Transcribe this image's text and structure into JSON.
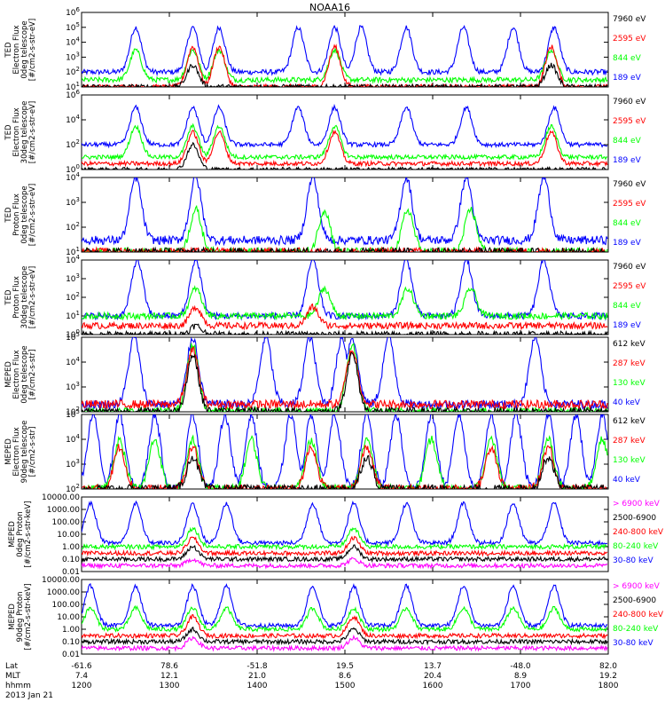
{
  "title": "NOAA16",
  "colors": {
    "blue": "#0000ff",
    "red": "#ff0000",
    "green": "#00ff00",
    "black": "#000000",
    "magenta": "#ff00ff"
  },
  "panels": [
    {
      "ylabel_lines": [
        "TED",
        "Electron Flux",
        "0deg telescope",
        "[#/cm2-s-str-eV]"
      ],
      "yticks": [
        "10^1",
        "10^2",
        "10^3",
        "10^4",
        "10^5",
        "10^6"
      ],
      "legend": [
        {
          "text": "7960 eV",
          "color": "black"
        },
        {
          "text": "2595 eV",
          "color": "red"
        },
        {
          "text": "844 eV",
          "color": "green"
        },
        {
          "text": "189 eV",
          "color": "blue"
        }
      ]
    },
    {
      "ylabel_lines": [
        "TED",
        "Electron Flux",
        "30deg telescope",
        "[#/cm2-s-str-eV]"
      ],
      "yticks": [
        "10^0",
        "10^2",
        "10^4",
        "10^6"
      ],
      "legend": [
        {
          "text": "7960 eV",
          "color": "black"
        },
        {
          "text": "2595 eV",
          "color": "red"
        },
        {
          "text": "844 eV",
          "color": "green"
        },
        {
          "text": "189 eV",
          "color": "blue"
        }
      ]
    },
    {
      "ylabel_lines": [
        "TED",
        "Proton Flux",
        "0deg telescope",
        "[#/cm2-s-str-eV]"
      ],
      "yticks": [
        "10^1",
        "10^2",
        "10^3",
        "10^4"
      ],
      "legend": [
        {
          "text": "7960 eV",
          "color": "black"
        },
        {
          "text": "2595 eV",
          "color": "red"
        },
        {
          "text": "844 eV",
          "color": "green"
        },
        {
          "text": "189 eV",
          "color": "blue"
        }
      ]
    },
    {
      "ylabel_lines": [
        "TED",
        "Proton Flux",
        "30deg telescope",
        "[#/cm2-s-str-eV]"
      ],
      "yticks": [
        "10^0",
        "10^1",
        "10^2",
        "10^3",
        "10^4"
      ],
      "legend": [
        {
          "text": "7960 eV",
          "color": "black"
        },
        {
          "text": "2595 eV",
          "color": "red"
        },
        {
          "text": "844 eV",
          "color": "green"
        },
        {
          "text": "189 eV",
          "color": "blue"
        }
      ]
    },
    {
      "ylabel_lines": [
        "MEPED",
        "Electron Flux",
        "0deg telescope",
        "[#/cm2-s-str]"
      ],
      "yticks": [
        "10^2",
        "10^3",
        "10^4",
        "10^5"
      ],
      "legend": [
        {
          "text": "612 keV",
          "color": "black"
        },
        {
          "text": "287 keV",
          "color": "red"
        },
        {
          "text": "130 keV",
          "color": "green"
        },
        {
          "text": "40 keV",
          "color": "blue"
        }
      ]
    },
    {
      "ylabel_lines": [
        "MEPED",
        "Electron Flux",
        "90deg telescope",
        "[#/cm2-s-str]"
      ],
      "yticks": [
        "10^2",
        "10^3",
        "10^4",
        "10^5"
      ],
      "legend": [
        {
          "text": "612 keV",
          "color": "black"
        },
        {
          "text": "287 keV",
          "color": "red"
        },
        {
          "text": "130 keV",
          "color": "green"
        },
        {
          "text": "40 keV",
          "color": "blue"
        }
      ]
    },
    {
      "ylabel_lines": [
        "MEPED",
        "0deg Proton",
        "[#/cm2-s-str-keV]"
      ],
      "yticks": [
        "0.01",
        "0.10",
        "1.00",
        "10.00",
        "100.00",
        "1000.00",
        "10000.00"
      ],
      "legend": [
        {
          "text": "> 6900 keV",
          "color": "magenta"
        },
        {
          "text": "2500-6900",
          "color": "black"
        },
        {
          "text": "240-800 keV",
          "color": "red"
        },
        {
          "text": "80-240 keV",
          "color": "green"
        },
        {
          "text": "30-80 keV",
          "color": "blue"
        }
      ]
    },
    {
      "ylabel_lines": [
        "MEPED",
        "90deg Proton",
        "[#/cm2-s-str-keV]"
      ],
      "yticks": [
        "0.01",
        "0.10",
        "1.00",
        "10.00",
        "100.00",
        "1000.00",
        "10000.00"
      ],
      "legend": [
        {
          "text": "> 6900 keV",
          "color": "magenta"
        },
        {
          "text": "2500-6900",
          "color": "black"
        },
        {
          "text": "240-800 keV",
          "color": "red"
        },
        {
          "text": "80-240 keV",
          "color": "green"
        },
        {
          "text": "30-80 keV",
          "color": "blue"
        }
      ]
    }
  ],
  "xaxis": {
    "row_labels": [
      "Lat",
      "MLT",
      "hhmm"
    ],
    "date": "2013 Jan 21",
    "columns": [
      {
        "lat": "-61.6",
        "mlt": "7.4",
        "hhmm": "1200"
      },
      {
        "lat": "78.6",
        "mlt": "12.1",
        "hhmm": "1300"
      },
      {
        "lat": "-51.8",
        "mlt": "21.0",
        "hhmm": "1400"
      },
      {
        "lat": "19.5",
        "mlt": "8.6",
        "hhmm": "1500"
      },
      {
        "lat": "13.7",
        "mlt": "20.4",
        "hhmm": "1600"
      },
      {
        "lat": "-48.0",
        "mlt": "8.9",
        "hhmm": "1700"
      },
      {
        "lat": "82.0",
        "mlt": "19.2",
        "hhmm": "1800"
      }
    ]
  },
  "chart_data": {
    "type": "line",
    "title": "NOAA16",
    "x": [
      "1200",
      "1300",
      "1400",
      "1500",
      "1600",
      "1700",
      "1800"
    ],
    "xlim": [
      "1200",
      "1800"
    ],
    "panels": [
      {
        "series": [
          {
            "name": "189 eV",
            "color": "blue",
            "peaks": [
              "1237",
              "1316",
              "1334",
              "1428",
              "1453",
              "1511",
              "1542",
              "1621",
              "1655",
              "1723"
            ],
            "peak_value": 100000,
            "base_value": 100
          },
          {
            "name": "844 eV",
            "color": "green",
            "peaks": [
              "1237",
              "1316",
              "1334",
              "1453",
              "1721"
            ],
            "peak_value": 3000,
            "base_value": 30
          },
          {
            "name": "2595 eV",
            "color": "red",
            "peaks": [
              "1316",
              "1334",
              "1453",
              "1721"
            ],
            "peak_value": 5000,
            "base_value": 10
          },
          {
            "name": "7960 eV",
            "color": "black",
            "peaks": [
              "1316",
              "1721"
            ],
            "peak_value": 300,
            "base_value": 10
          }
        ]
      },
      {
        "series": [
          {
            "name": "189 eV",
            "color": "blue",
            "peaks": [
              "1237",
              "1316",
              "1334",
              "1428",
              "1453",
              "1542",
              "1623",
              "1723"
            ],
            "peak_value": 100000,
            "base_value": 100
          },
          {
            "name": "844 eV",
            "color": "green",
            "peaks": [
              "1237",
              "1316",
              "1334",
              "1453",
              "1721"
            ],
            "peak_value": 3000,
            "base_value": 10
          },
          {
            "name": "2595 eV",
            "color": "red",
            "peaks": [
              "1316",
              "1334",
              "1453",
              "1721"
            ],
            "peak_value": 1000,
            "base_value": 3
          },
          {
            "name": "7960 eV",
            "color": "black",
            "peaks": [
              "1316"
            ],
            "peak_value": 100,
            "base_value": 1
          }
        ]
      },
      {
        "series": [
          {
            "name": "189 eV",
            "color": "blue",
            "peaks": [
              "1237",
              "1318",
              "1438",
              "1542",
              "1623",
              "1716"
            ],
            "peak_value": 10000,
            "base_value": 30
          },
          {
            "name": "844 eV",
            "color": "green",
            "peaks": [
              "1318",
              "1446",
              "1543",
              "1626"
            ],
            "peak_value": 500,
            "base_value": 10
          },
          {
            "name": "2595 eV",
            "color": "red",
            "peaks": [
              "1318"
            ],
            "peak_value": 10,
            "base_value": 10
          },
          {
            "name": "7960 eV",
            "color": "black",
            "peaks": [
              "1318",
              "1438"
            ],
            "peak_value": 10,
            "base_value": 10
          }
        ]
      },
      {
        "series": [
          {
            "name": "189 eV",
            "color": "blue",
            "peaks": [
              "1238",
              "1318",
              "1438",
              "1542",
              "1623",
              "1716"
            ],
            "peak_value": 10000,
            "base_value": 10
          },
          {
            "name": "844 eV",
            "color": "green",
            "peaks": [
              "1318",
              "1446",
              "1543",
              "1626"
            ],
            "peak_value": 300,
            "base_value": 10
          },
          {
            "name": "2595 eV",
            "color": "red",
            "peaks": [
              "1318",
              "1438"
            ],
            "peak_value": 30,
            "base_value": 3
          },
          {
            "name": "7960 eV",
            "color": "black",
            "peaks": [
              "1318"
            ],
            "peak_value": 3,
            "base_value": 1
          }
        ]
      },
      {
        "series": [
          {
            "name": "40 keV",
            "color": "blue",
            "peaks": [
              "1236",
              "1316",
              "1406",
              "1436",
              "1458",
              "1505",
              "1530",
              "1710"
            ],
            "peak_value": 100000,
            "base_value": 200
          },
          {
            "name": "130 keV",
            "color": "green",
            "peaks": [
              "1316",
              "1505"
            ],
            "peak_value": 50000,
            "base_value": 100
          },
          {
            "name": "287 keV",
            "color": "red",
            "peaks": [
              "1316",
              "1505"
            ],
            "peak_value": 30000,
            "base_value": 200
          },
          {
            "name": "612 keV",
            "color": "black",
            "peaks": [
              "1316",
              "1505"
            ],
            "peak_value": 20000,
            "base_value": 100
          }
        ]
      },
      {
        "series": [
          {
            "name": "40 keV",
            "color": "blue",
            "peaks": [
              "1208",
              "1226",
              "1250",
              "1316",
              "1338",
              "1356",
              "1423",
              "1437",
              "1453",
              "1515",
              "1535",
              "1559",
              "1618",
              "1640",
              "1657",
              "1719",
              "1738",
              "1756"
            ],
            "peak_value": 100000,
            "base_value": 100
          },
          {
            "name": "130 keV",
            "color": "green",
            "peaks": [
              "1226",
              "1250",
              "1316",
              "1356",
              "1437",
              "1515",
              "1559",
              "1640",
              "1719",
              "1756"
            ],
            "peak_value": 10000,
            "base_value": 100
          },
          {
            "name": "287 keV",
            "color": "red",
            "peaks": [
              "1226",
              "1316",
              "1437",
              "1515",
              "1640",
              "1719"
            ],
            "peak_value": 5000,
            "base_value": 100
          },
          {
            "name": "612 keV",
            "color": "black",
            "peaks": [
              "1316",
              "1515",
              "1719"
            ],
            "peak_value": 2000,
            "base_value": 100
          }
        ]
      },
      {
        "series": [
          {
            "name": "30-80 keV",
            "color": "blue",
            "peaks": [
              "1206",
              "1237",
              "1316",
              "1339",
              "1438",
              "1506",
              "1542",
              "1621",
              "1655",
              "1723"
            ],
            "peak_value": 3000,
            "base_value": 2
          },
          {
            "name": "80-240 keV",
            "color": "green",
            "peaks": [
              "1316",
              "1506"
            ],
            "peak_value": 30,
            "base_value": 1
          },
          {
            "name": "240-800 keV",
            "color": "red",
            "peaks": [
              "1316",
              "1506"
            ],
            "peak_value": 5,
            "base_value": 0.3
          },
          {
            "name": "2500-6900",
            "color": "black",
            "peaks": [
              "1316",
              "1506"
            ],
            "peak_value": 1,
            "base_value": 0.1
          },
          {
            "name": "> 6900 keV",
            "color": "magenta",
            "peaks": [
              "1316",
              "1506"
            ],
            "peak_value": 0.1,
            "base_value": 0.03
          }
        ]
      },
      {
        "series": [
          {
            "name": "30-80 keV",
            "color": "blue",
            "peaks": [
              "1206",
              "1237",
              "1316",
              "1339",
              "1438",
              "1506",
              "1542",
              "1621",
              "1655",
              "1723"
            ],
            "peak_value": 3000,
            "base_value": 2
          },
          {
            "name": "80-240 keV",
            "color": "green",
            "peaks": [
              "1206",
              "1237",
              "1316",
              "1339",
              "1438",
              "1506",
              "1542",
              "1621",
              "1655",
              "1723"
            ],
            "peak_value": 50,
            "base_value": 1
          },
          {
            "name": "240-800 keV",
            "color": "red",
            "peaks": [
              "1316",
              "1506"
            ],
            "peak_value": 10,
            "base_value": 0.3
          },
          {
            "name": "2500-6900",
            "color": "black",
            "peaks": [
              "1316",
              "1506"
            ],
            "peak_value": 1,
            "base_value": 0.1
          },
          {
            "name": "> 6900 keV",
            "color": "magenta",
            "peaks": [
              "1316",
              "1506"
            ],
            "peak_value": 0.2,
            "base_value": 0.03
          }
        ]
      }
    ]
  }
}
